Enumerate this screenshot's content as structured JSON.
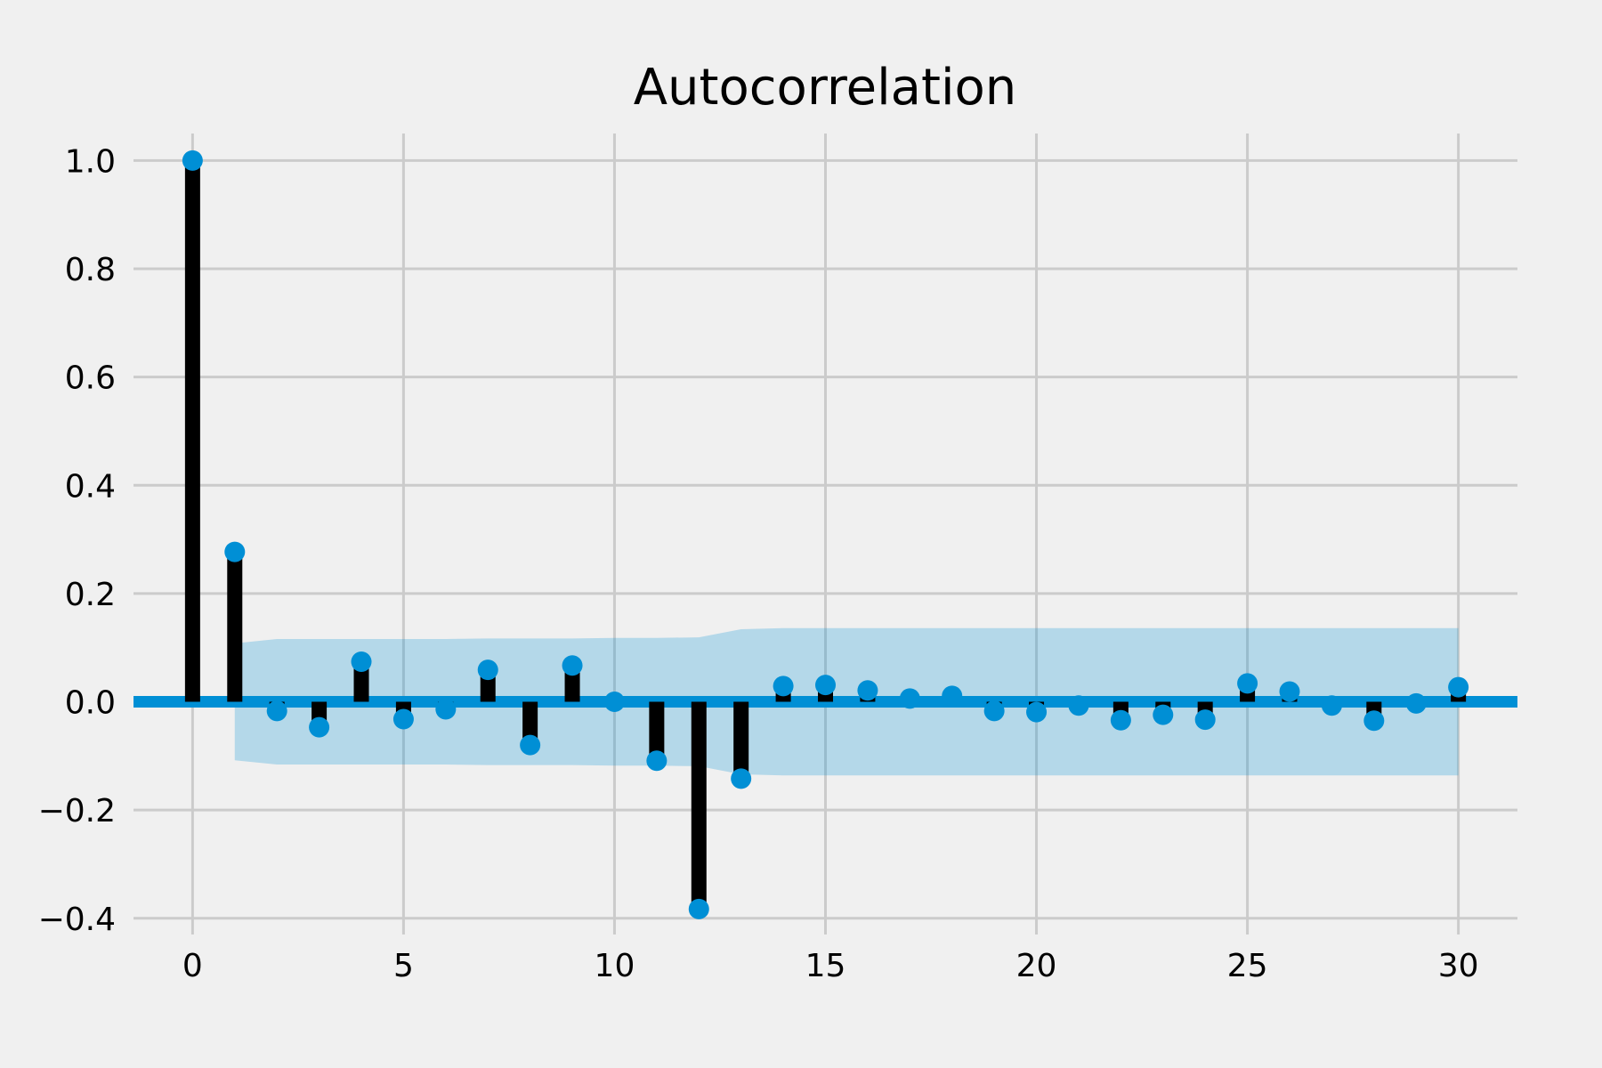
{
  "chart_data": {
    "type": "stem",
    "title": "Autocorrelation",
    "xlabel": "",
    "ylabel": "",
    "xlim": [
      -1.4,
      31.4
    ],
    "ylim": [
      -0.43,
      1.05
    ],
    "x_ticks": [
      0,
      5,
      10,
      15,
      20,
      25,
      30
    ],
    "x_tick_labels": [
      "0",
      "5",
      "10",
      "15",
      "20",
      "25",
      "30"
    ],
    "y_ticks": [
      1.0,
      0.8,
      0.6,
      0.4,
      0.2,
      0.0,
      -0.2,
      -0.4
    ],
    "y_tick_labels": [
      "1.0",
      "0.8",
      "0.6",
      "0.4",
      "0.2",
      "0.0",
      "−0.2",
      "−0.4"
    ],
    "grid": true,
    "colors": {
      "marker": "#008fd5",
      "stem": "#000000",
      "confidence_band": "#008fd5",
      "background": "#f0f0f0",
      "grid": "#cbcbcb"
    },
    "lags": [
      0,
      1,
      2,
      3,
      4,
      5,
      6,
      7,
      8,
      9,
      10,
      11,
      12,
      13,
      14,
      15,
      16,
      17,
      18,
      19,
      20,
      21,
      22,
      23,
      24,
      25,
      26,
      27,
      28,
      29,
      30
    ],
    "values": [
      1.0,
      0.277,
      -0.017,
      -0.047,
      0.074,
      -0.032,
      -0.014,
      0.059,
      -0.08,
      0.067,
      0.0,
      -0.109,
      -0.383,
      -0.142,
      0.029,
      0.031,
      0.021,
      0.006,
      0.011,
      -0.017,
      -0.019,
      -0.007,
      -0.034,
      -0.024,
      -0.033,
      0.034,
      0.019,
      -0.007,
      -0.035,
      -0.003,
      0.027
    ],
    "confidence_interval": {
      "lags": [
        1,
        2,
        3,
        4,
        5,
        6,
        7,
        8,
        9,
        10,
        11,
        12,
        13,
        14,
        15,
        16,
        17,
        18,
        19,
        20,
        21,
        22,
        23,
        24,
        25,
        26,
        27,
        28,
        29,
        30
      ],
      "upper": [
        0.108,
        0.116,
        0.116,
        0.116,
        0.116,
        0.116,
        0.117,
        0.117,
        0.117,
        0.118,
        0.118,
        0.119,
        0.134,
        0.136,
        0.136,
        0.136,
        0.136,
        0.136,
        0.136,
        0.136,
        0.136,
        0.136,
        0.136,
        0.136,
        0.136,
        0.136,
        0.136,
        0.136,
        0.136,
        0.136
      ]
    }
  }
}
